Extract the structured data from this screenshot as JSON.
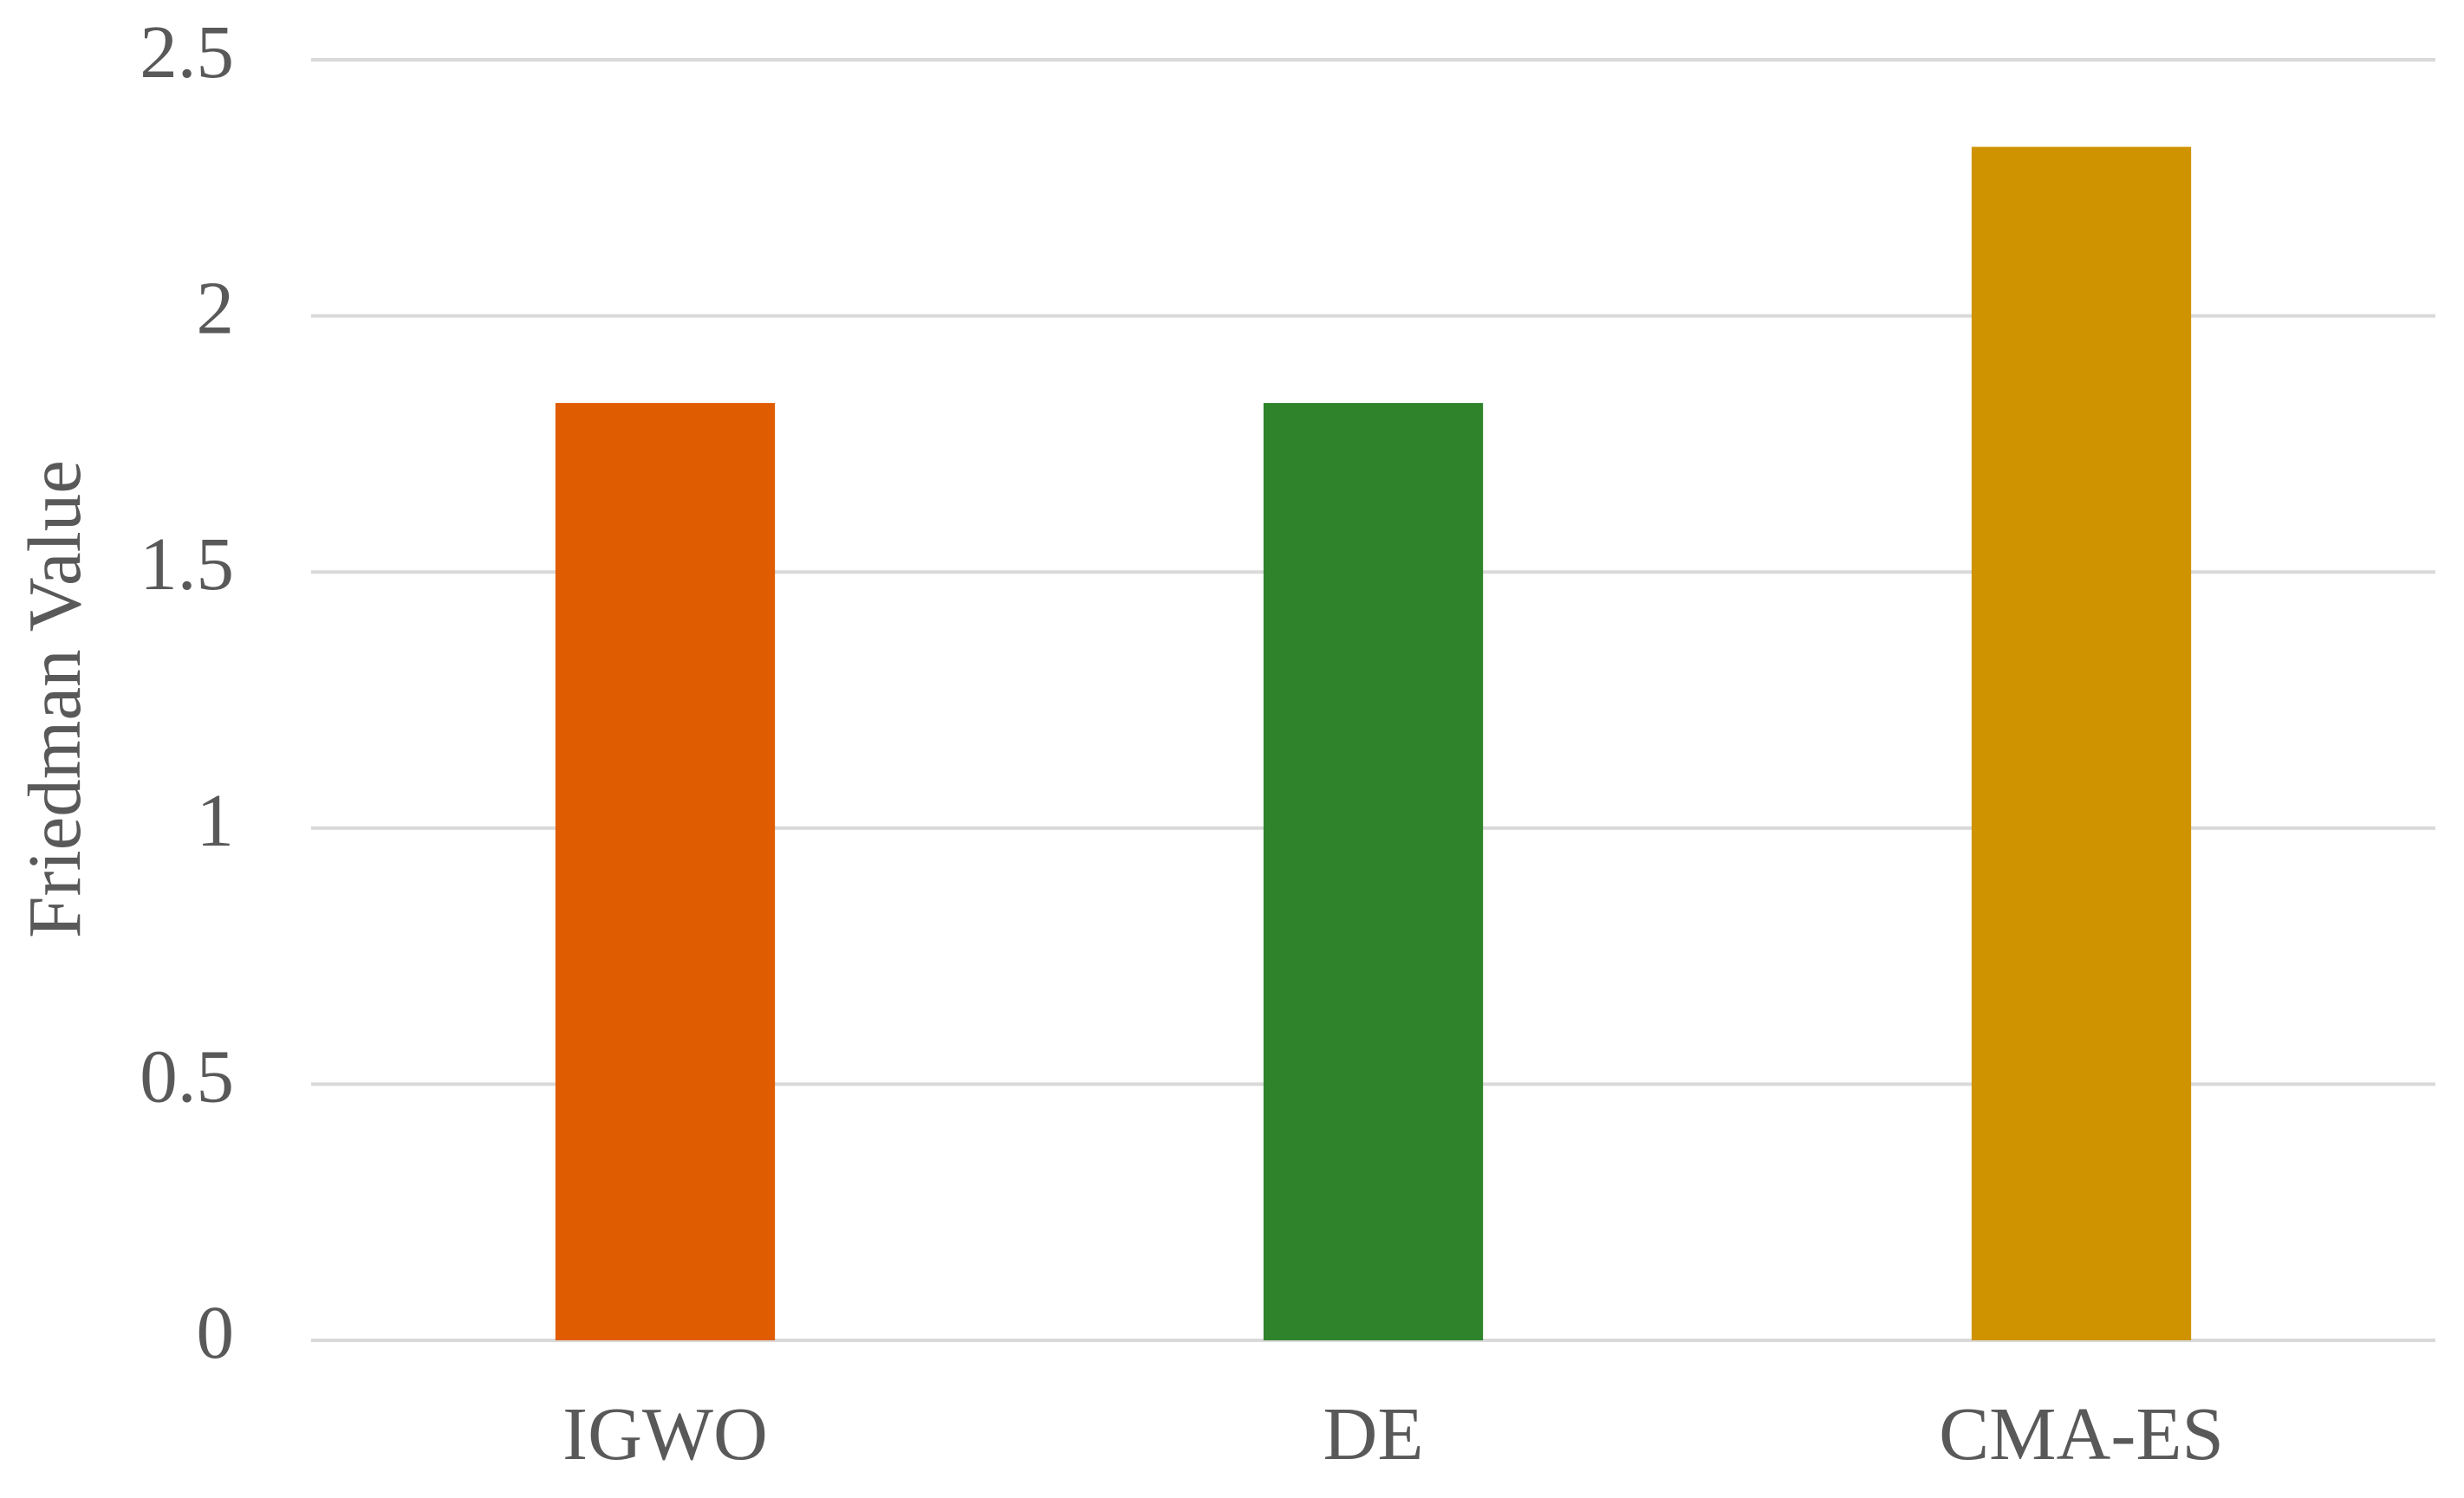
{
  "chart_data": {
    "type": "bar",
    "y_label": "Friedman Value",
    "categories": [
      "IGWO",
      "DE",
      "CMA-ES"
    ],
    "values": [
      1.83,
      1.83,
      2.33
    ],
    "colors": [
      "#e05c00",
      "#2e832b",
      "#d09300"
    ],
    "ylim": [
      0,
      2.5
    ],
    "yticks": [
      0,
      0.5,
      1,
      1.5,
      2,
      2.5
    ],
    "grid": true
  }
}
